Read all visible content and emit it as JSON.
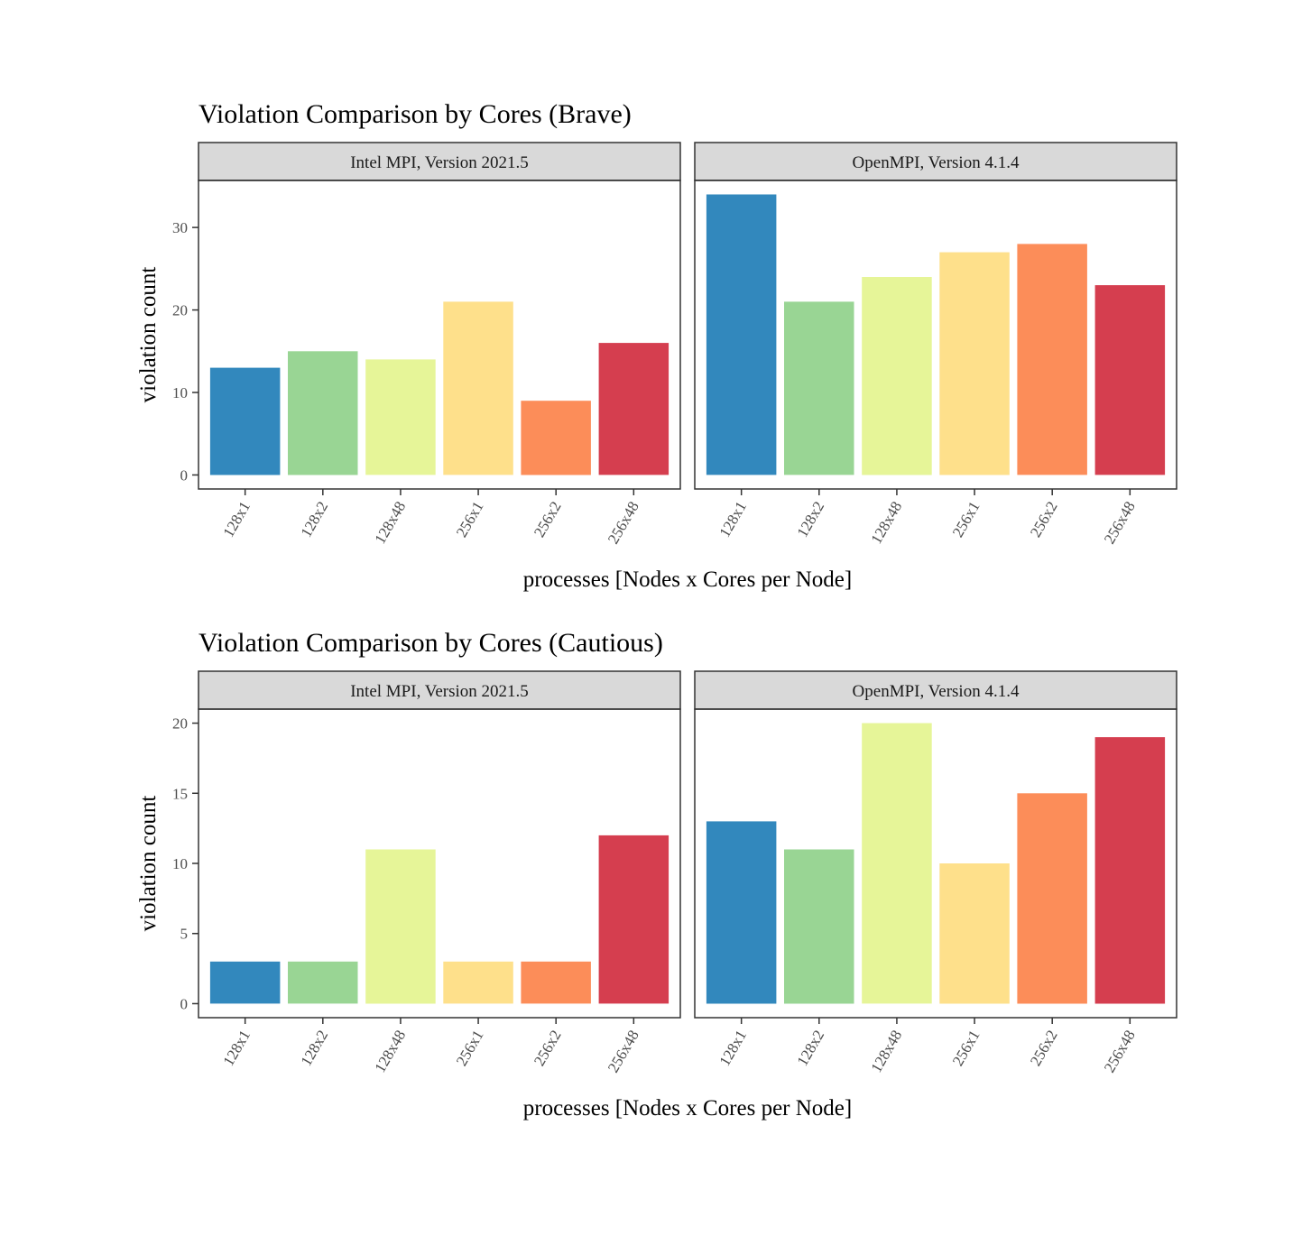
{
  "chart_data": [
    {
      "type": "bar",
      "title": "Violation Comparison by Cores (Brave)",
      "xlabel": "processes [Nodes x Cores per Node]",
      "ylabel": "violation count",
      "ylim": [
        -1.7,
        35.7
      ],
      "yticks": [
        0,
        10,
        20,
        30
      ],
      "ytick_labels": [
        "0",
        "10",
        "20",
        "30"
      ],
      "categories": [
        "128x1",
        "128x2",
        "128x48",
        "256x1",
        "256x2",
        "256x48"
      ],
      "panels": [
        {
          "name": "Intel MPI, Version 2021.5",
          "values": [
            13,
            15,
            14,
            21,
            9,
            16
          ]
        },
        {
          "name": "OpenMPI, Version 4.1.4",
          "values": [
            34,
            21,
            24,
            27,
            28,
            23
          ]
        }
      ],
      "grid": false
    },
    {
      "type": "bar",
      "title": "Violation Comparison by Cores (Cautious)",
      "xlabel": "processes [Nodes x Cores per Node]",
      "ylabel": "violation count",
      "ylim": [
        -1.0,
        21.0
      ],
      "yticks": [
        0,
        5,
        10,
        15,
        20
      ],
      "ytick_labels": [
        "0",
        "5",
        "10",
        "15",
        "20"
      ],
      "categories": [
        "128x1",
        "128x2",
        "128x48",
        "256x1",
        "256x2",
        "256x48"
      ],
      "panels": [
        {
          "name": "Intel MPI, Version 2021.5",
          "values": [
            3,
            3,
            11,
            3,
            3,
            12
          ]
        },
        {
          "name": "OpenMPI, Version 4.1.4",
          "values": [
            13,
            11,
            20,
            10,
            15,
            19
          ]
        }
      ],
      "grid": false
    }
  ],
  "colors": {
    "bars": [
      "#3288bd",
      "#99d594",
      "#e6f598",
      "#fee08b",
      "#fc8d59",
      "#d53e4f"
    ],
    "strip_fill": "#d9d9d9",
    "panel_border": "#333333",
    "tick_text": "#4d4d4d"
  }
}
